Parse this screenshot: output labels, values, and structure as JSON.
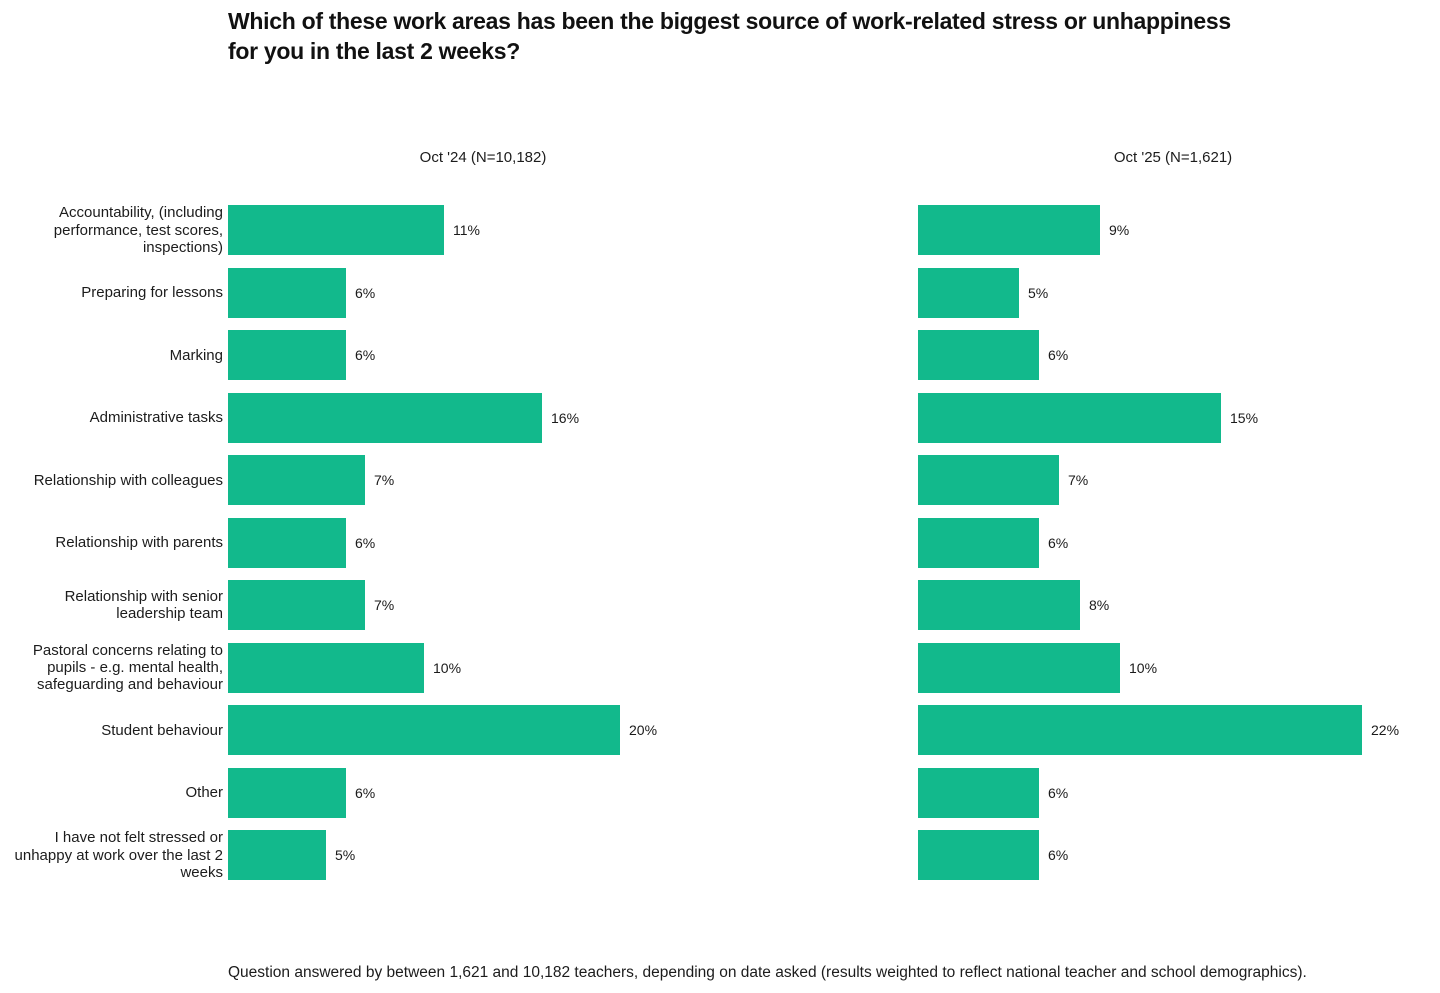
{
  "page": {
    "title": "Which of these work areas has been the biggest source of work-related stress or unhappiness\nfor you in the last 2 weeks?",
    "footnote": "Question answered by between 1,621 and 10,182 teachers, depending on date asked (results weighted to reflect national teacher and school demographics)."
  },
  "chart_data": {
    "type": "bar",
    "orientation": "horizontal",
    "title": "Which of these work areas has been the biggest source of work-related stress or unhappiness for you in the last 2 weeks?",
    "categories": [
      "Accountability, (including performance, test scores, inspections)",
      "Preparing for lessons",
      "Marking",
      "Administrative tasks",
      "Relationship with colleagues",
      "Relationship with parents",
      "Relationship with senior leadership team",
      "Pastoral concerns relating to pupils - e.g. mental health, safeguarding and behaviour",
      "Student behaviour",
      "Other",
      "I have not felt stressed or unhappy at work over the last 2 weeks"
    ],
    "series": [
      {
        "name": "Oct '24 (N=10,182)",
        "values": [
          11,
          6,
          6,
          16,
          7,
          6,
          7,
          10,
          20,
          6,
          5
        ]
      },
      {
        "name": "Oct '25 (N=1,621)",
        "values": [
          9,
          5,
          6,
          15,
          7,
          6,
          8,
          10,
          22,
          6,
          6
        ]
      }
    ],
    "value_suffix": "%",
    "value_labels": "outside-end",
    "bar_color": "#12b98c",
    "xlim": [
      0,
      25
    ],
    "grid": false,
    "legend_position": "column-headers",
    "note": "Question answered by between 1,621 and 10,182 teachers, depending on date asked (results weighted to reflect national teacher and school demographics)."
  }
}
